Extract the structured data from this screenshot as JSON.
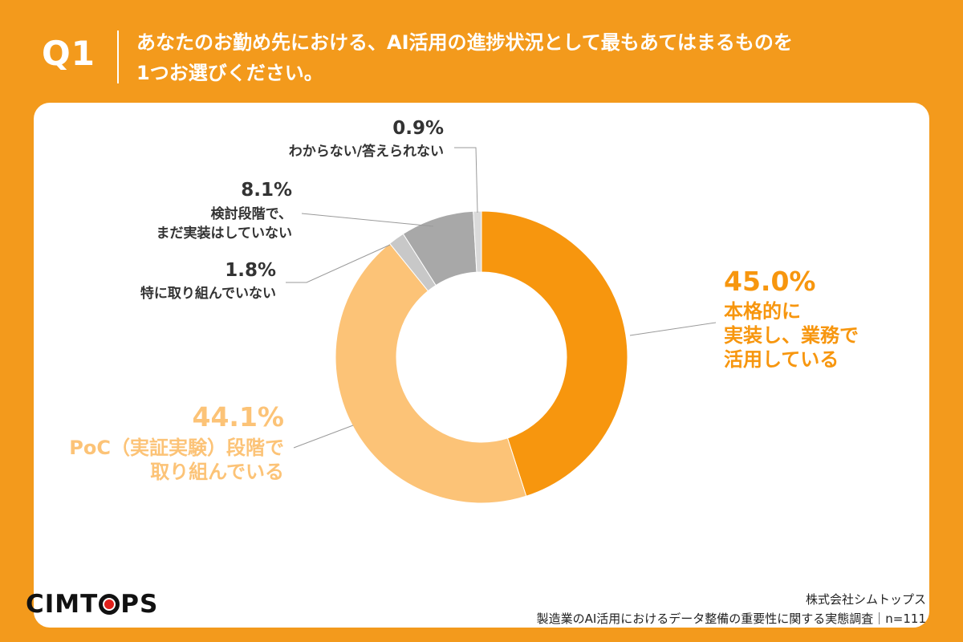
{
  "header": {
    "q_label": "Q1",
    "question_line1": "あなたのお勤め先における、AI活用の進捗状況として最もあてはまるものを",
    "question_line2": "1つお選びください。"
  },
  "colors": {
    "background": "#F39A1C",
    "card": "#FFFFFF"
  },
  "chart_data": {
    "type": "pie",
    "style": "donut",
    "title": "",
    "slices": [
      {
        "pct_label": "45.0%",
        "value": 45.0,
        "label_lines": [
          "本格的に",
          "実装し、業務で",
          "活用している"
        ],
        "color": "#F7960E",
        "label_color": "#F7960E"
      },
      {
        "pct_label": "44.1%",
        "value": 44.1,
        "label_lines": [
          "PoC（実証実験）段階で",
          "取り組んでいる"
        ],
        "color": "#FCC377",
        "label_color": "#FCC377"
      },
      {
        "pct_label": "1.8%",
        "value": 1.8,
        "label_lines": [
          "特に取り組んでいない"
        ],
        "color": "#C8C8C8",
        "label_color": "#333333"
      },
      {
        "pct_label": "8.1%",
        "value": 8.1,
        "label_lines": [
          "検討段階で、",
          "まだ実装はしていない"
        ],
        "color": "#A8A8A8",
        "label_color": "#333333"
      },
      {
        "pct_label": "0.9%",
        "value": 0.9,
        "label_lines": [
          "わからない/答えられない"
        ],
        "color": "#DADADA",
        "label_color": "#333333"
      }
    ]
  },
  "footer": {
    "logo": "CIMTOPS",
    "company": "株式会社シムトップス",
    "survey": "製造業のAI活用におけるデータ整備の重要性に関する実態調査｜n=111"
  }
}
